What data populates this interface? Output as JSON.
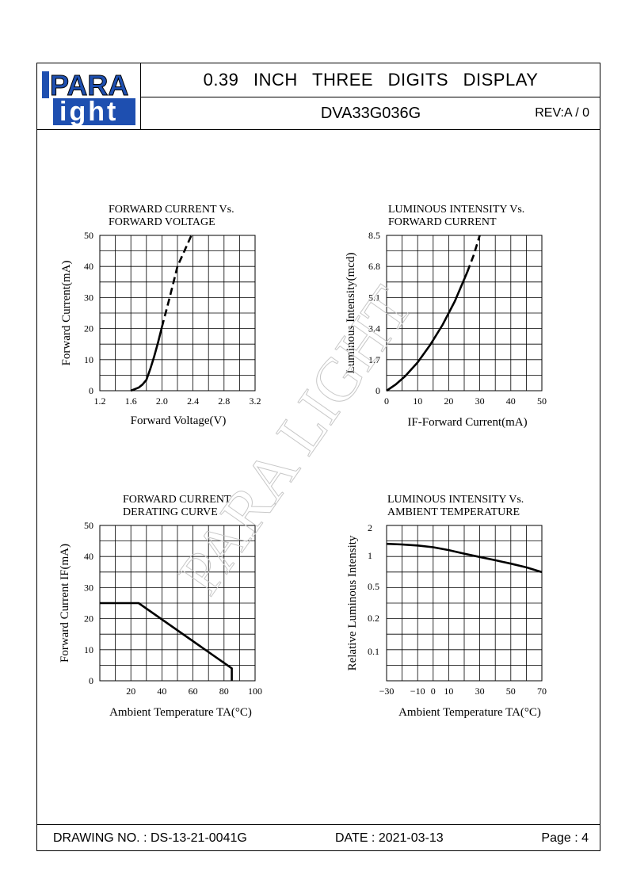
{
  "header": {
    "title": "0.39   INCH   THREE   DIGITS   DISPLAY",
    "model": "DVA33G036G",
    "rev": "REV:A / 0",
    "logo": {
      "line1": "PARA",
      "line2": "ight"
    }
  },
  "footer": {
    "drawing_no": "DRAWING NO. : DS-13-21-0041G",
    "date": "DATE : 2021-03-13",
    "page": "Page : 4"
  },
  "watermark": "PARA LIGHT",
  "chart_data": [
    {
      "type": "line",
      "title": [
        "FORWARD  CURRENT  Vs.",
        "FORWARD  VOLTAGE"
      ],
      "xlabel": "Forward  Voltage(V)",
      "ylabel": "Forward  Current(mA)",
      "xticks": [
        "1.2",
        "1.6",
        "2.0",
        "2.4",
        "2.8",
        "3.2"
      ],
      "yticks": [
        "0",
        "10",
        "20",
        "30",
        "40",
        "50"
      ],
      "xlim": [
        1.2,
        3.2
      ],
      "ylim": [
        0,
        50
      ],
      "grid": true,
      "series": [
        {
          "style": "solid",
          "points": [
            [
              1.6,
              0
            ],
            [
              1.7,
              1
            ],
            [
              1.75,
              2
            ],
            [
              1.8,
              3.5
            ],
            [
              1.85,
              7
            ],
            [
              1.9,
              11
            ],
            [
              1.95,
              15.5
            ],
            [
              2.0,
              20.5
            ]
          ]
        },
        {
          "style": "dashed",
          "points": [
            [
              2.0,
              20.5
            ],
            [
              2.1,
              30
            ],
            [
              2.2,
              40
            ],
            [
              2.38,
              50
            ]
          ]
        }
      ]
    },
    {
      "type": "line",
      "title": [
        "LUMINOUS  INTENSITY  Vs.",
        "FORWARD  CURRENT"
      ],
      "xlabel": "IF-Forward  Current(mA)",
      "ylabel": "Luminous  Intensity(mcd)",
      "xticks": [
        "0",
        "10",
        "20",
        "30",
        "40",
        "50"
      ],
      "yticks": [
        "0",
        "1.7",
        "3.4",
        "5.1",
        "6.8",
        "8.5"
      ],
      "xlim": [
        0,
        50
      ],
      "ylim": [
        0,
        8.5
      ],
      "grid": true,
      "series": [
        {
          "style": "solid",
          "points": [
            [
              0,
              0
            ],
            [
              3,
              0.35
            ],
            [
              6,
              0.8
            ],
            [
              10,
              1.55
            ],
            [
              14,
              2.5
            ],
            [
              18,
              3.6
            ],
            [
              22,
              4.9
            ],
            [
              26,
              6.5
            ]
          ]
        },
        {
          "style": "dashed",
          "points": [
            [
              26,
              6.5
            ],
            [
              28,
              7.4
            ],
            [
              30,
              8.5
            ]
          ]
        }
      ]
    },
    {
      "type": "line",
      "title": [
        "FORWARD  CURRENT",
        "DERATING  CURVE"
      ],
      "xlabel": "Ambient  Temperature  TA(°C)",
      "ylabel": "Forward  Current  IF(mA)",
      "xticks": [
        "20",
        "40",
        "60",
        "80",
        "100"
      ],
      "yticks": [
        "0",
        "10",
        "20",
        "30",
        "40",
        "50"
      ],
      "xlim": [
        0,
        100
      ],
      "ylim": [
        0,
        50
      ],
      "grid": true,
      "series": [
        {
          "style": "solid",
          "points": [
            [
              0,
              25
            ],
            [
              25,
              25
            ],
            [
              85,
              4
            ],
            [
              85,
              0
            ]
          ]
        }
      ]
    },
    {
      "type": "line",
      "title": [
        "LUMINOUS  INTENSITY  Vs.",
        "AMBIENT  TEMPERATURE"
      ],
      "xlabel": "Ambient  Temperature  TA(°C)",
      "ylabel": "Relative  Luminous  Intensity",
      "xticks": [
        "-30",
        "-10",
        "0",
        "10",
        "30",
        "50",
        "70"
      ],
      "yticks": [
        "0.1",
        "0.2",
        "0.5",
        "1",
        "2"
      ],
      "xlim": [
        -30,
        70
      ],
      "grid": true,
      "series": [
        {
          "style": "solid",
          "points": [
            [
              -30,
              1.35
            ],
            [
              -20,
              1.33
            ],
            [
              -10,
              1.3
            ],
            [
              0,
              1.25
            ],
            [
              10,
              1.17
            ],
            [
              20,
              1.08
            ],
            [
              30,
              1.0
            ],
            [
              40,
              0.93
            ],
            [
              50,
              0.86
            ],
            [
              60,
              0.79
            ],
            [
              70,
              0.71
            ]
          ]
        }
      ]
    }
  ]
}
